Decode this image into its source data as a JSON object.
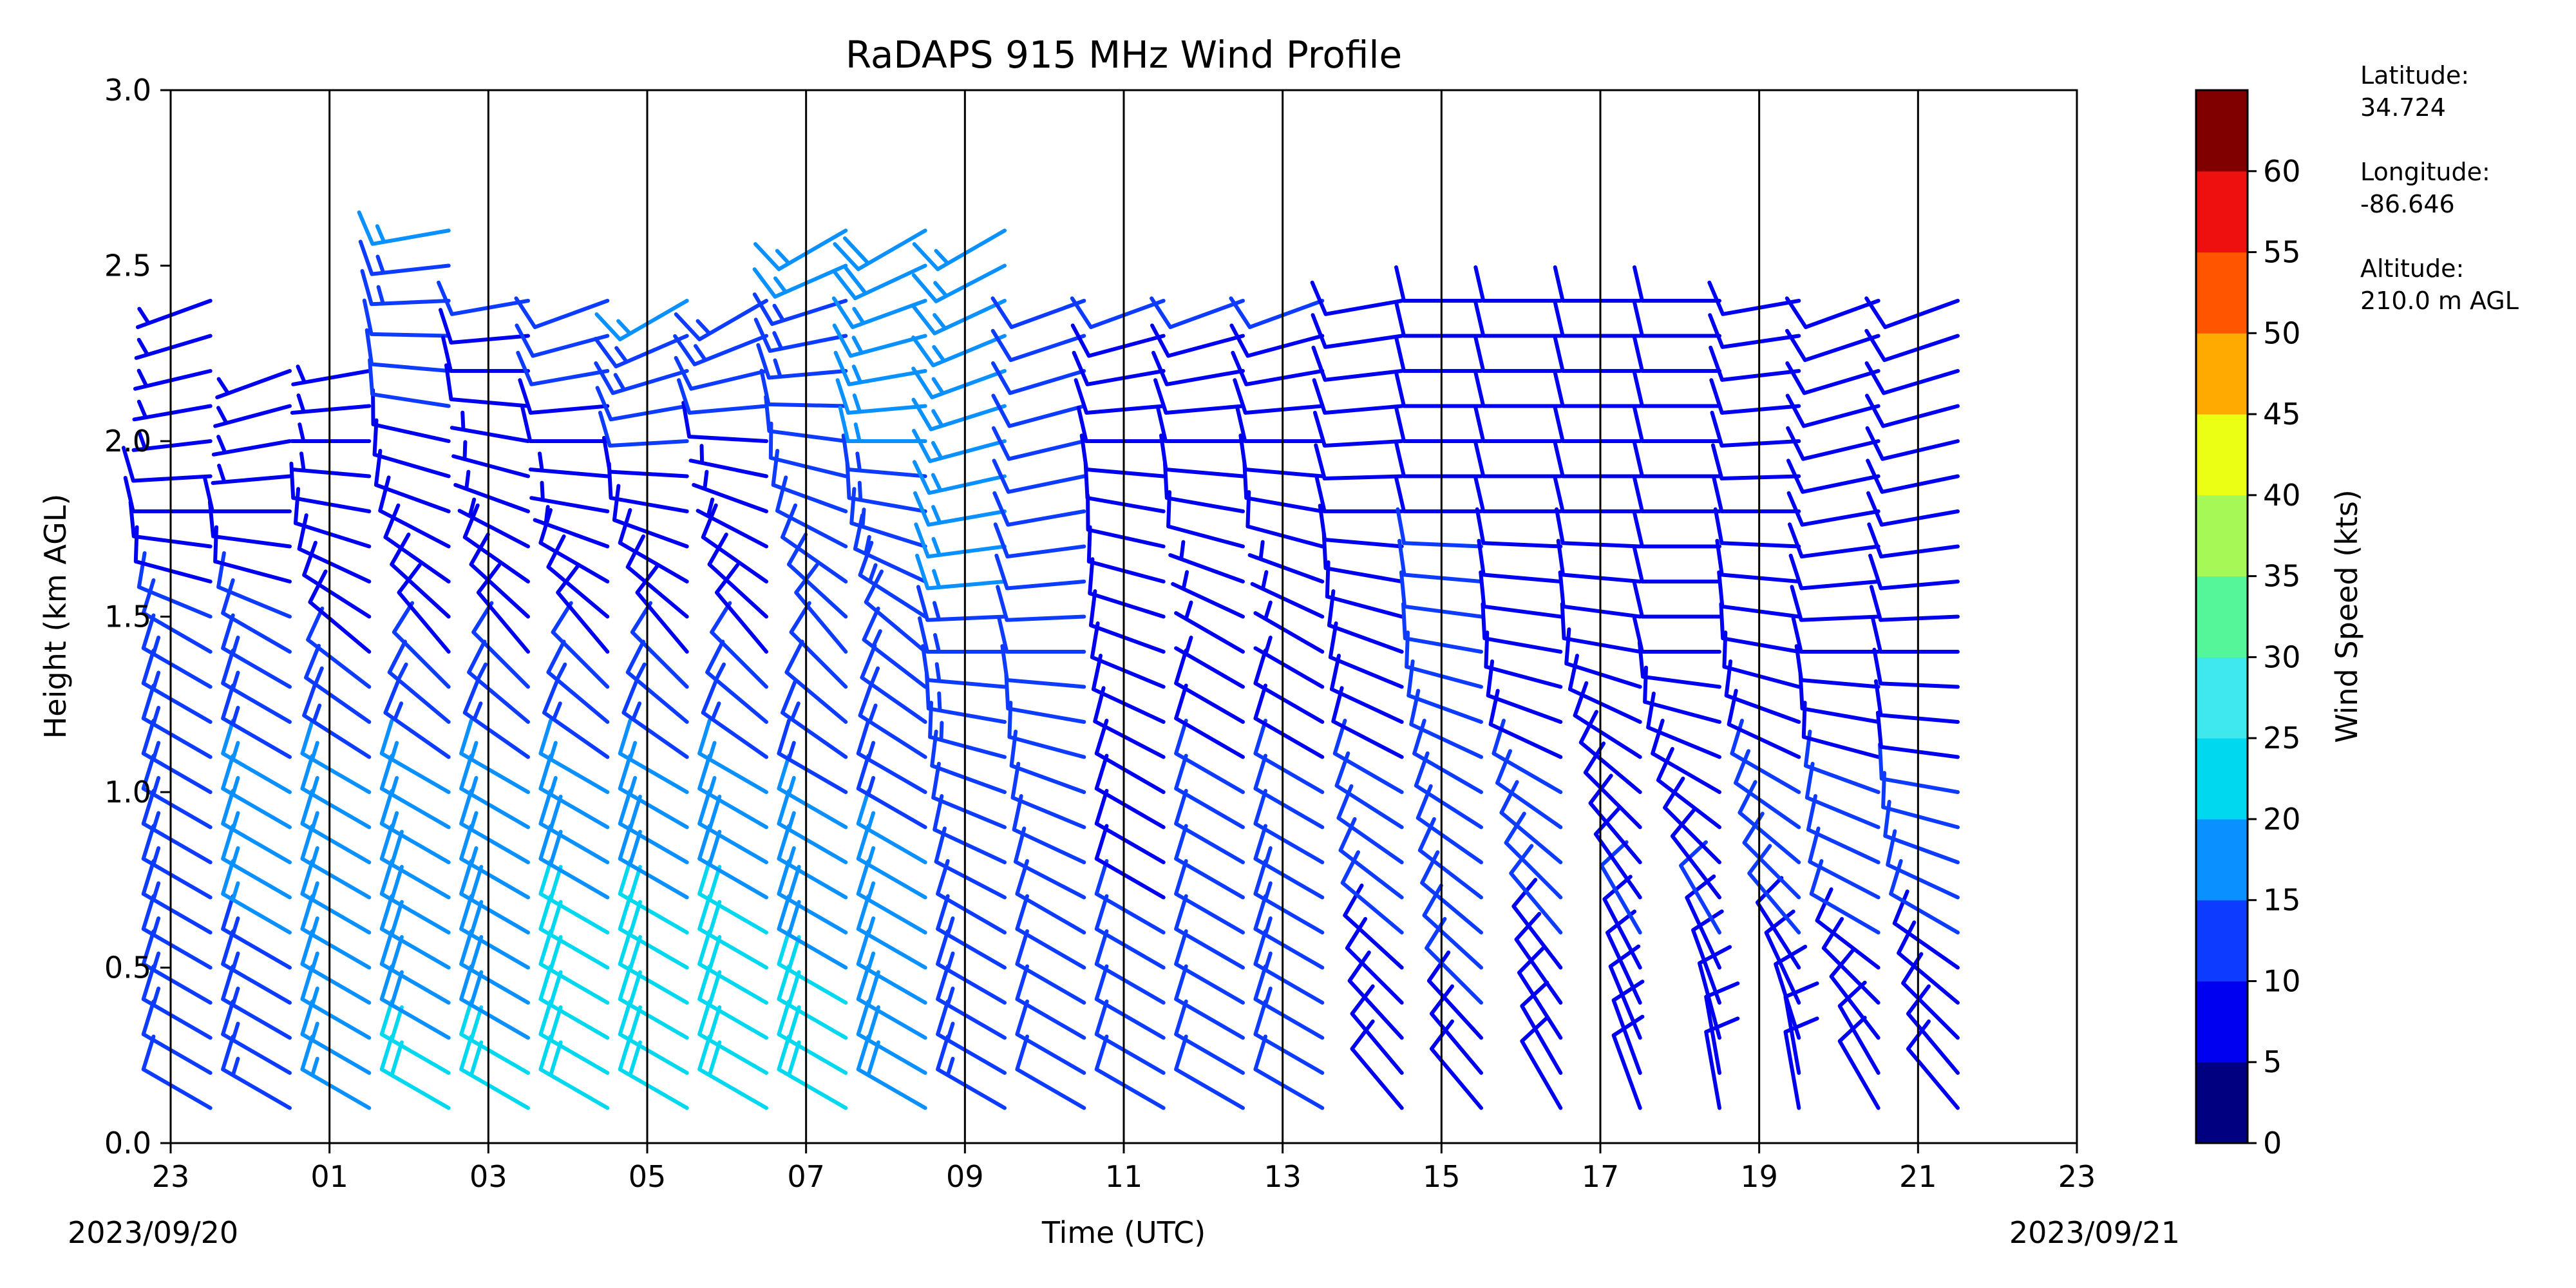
{
  "chart_data": {
    "type": "wind_barb_profile",
    "title": "RaDAPS 915 MHz Wind Profile",
    "xlabel": "Time (UTC)",
    "ylabel": "Height (km AGL)",
    "x_ticks": [
      "23",
      "01",
      "03",
      "05",
      "07",
      "09",
      "11",
      "13",
      "15",
      "17",
      "19",
      "21",
      "23"
    ],
    "x_start_date": "2023/09/20",
    "x_end_date": "2023/09/21",
    "x_range_hours": [
      0,
      24
    ],
    "y_ticks": [
      "0.0",
      "0.5",
      "1.0",
      "1.5",
      "2.0",
      "2.5",
      "3.0"
    ],
    "ylim": [
      0,
      3.0
    ],
    "vertical_separators_every_hours": 2,
    "colorbar": {
      "label": "Wind Speed (kts)",
      "ticks": [
        "0",
        "5",
        "10",
        "15",
        "20",
        "25",
        "30",
        "35",
        "40",
        "45",
        "50",
        "55",
        "60"
      ],
      "bins": [
        {
          "min": 0,
          "max": 5,
          "color": "#000080"
        },
        {
          "min": 5,
          "max": 10,
          "color": "#0000f0"
        },
        {
          "min": 10,
          "max": 15,
          "color": "#0d3bff"
        },
        {
          "min": 15,
          "max": 20,
          "color": "#0a90ff"
        },
        {
          "min": 20,
          "max": 25,
          "color": "#00d8f0"
        },
        {
          "min": 25,
          "max": 30,
          "color": "#3ee8ec"
        },
        {
          "min": 30,
          "max": 35,
          "color": "#55f59a"
        },
        {
          "min": 35,
          "max": 40,
          "color": "#a6f856"
        },
        {
          "min": 40,
          "max": 45,
          "color": "#eaff14"
        },
        {
          "min": 45,
          "max": 50,
          "color": "#ffaa00"
        },
        {
          "min": 50,
          "max": 55,
          "color": "#ff5500"
        },
        {
          "min": 55,
          "max": 60,
          "color": "#ee0f0f"
        },
        {
          "min": 60,
          "max": 65,
          "color": "#800000"
        }
      ]
    },
    "series": [
      {
        "time_hours": 0.5,
        "levels": [
          [
            0.2,
            12,
            300
          ],
          [
            0.6,
            14,
            300
          ],
          [
            1.0,
            14,
            300
          ],
          [
            1.4,
            12,
            300
          ],
          [
            1.8,
            8,
            270
          ],
          [
            2.4,
            6,
            250
          ]
        ]
      },
      {
        "time_hours": 1.5,
        "levels": [
          [
            0.2,
            14,
            300
          ],
          [
            0.6,
            15,
            300
          ],
          [
            1.0,
            15,
            300
          ],
          [
            1.4,
            12,
            300
          ],
          [
            1.8,
            8,
            270
          ],
          [
            2.2,
            6,
            250
          ]
        ]
      },
      {
        "time_hours": 2.5,
        "levels": [
          [
            0.2,
            16,
            300
          ],
          [
            0.6,
            16,
            300
          ],
          [
            1.0,
            15,
            300
          ],
          [
            1.4,
            10,
            310
          ],
          [
            1.8,
            8,
            280
          ],
          [
            2.2,
            6,
            260
          ]
        ]
      },
      {
        "time_hours": 3.5,
        "levels": [
          [
            0.2,
            20,
            300
          ],
          [
            0.6,
            18,
            300
          ],
          [
            1.0,
            16,
            300
          ],
          [
            1.4,
            10,
            320
          ],
          [
            1.8,
            8,
            290
          ],
          [
            2.6,
            15,
            260
          ]
        ]
      },
      {
        "time_hours": 4.5,
        "levels": [
          [
            0.2,
            20,
            300
          ],
          [
            0.6,
            18,
            300
          ],
          [
            1.0,
            15,
            300
          ],
          [
            1.4,
            10,
            320
          ],
          [
            1.8,
            6,
            290
          ],
          [
            2.4,
            10,
            260
          ]
        ]
      },
      {
        "time_hours": 5.5,
        "levels": [
          [
            0.2,
            22,
            300
          ],
          [
            0.6,
            20,
            300
          ],
          [
            1.0,
            16,
            300
          ],
          [
            1.4,
            10,
            320
          ],
          [
            1.8,
            6,
            280
          ],
          [
            2.4,
            12,
            250
          ]
        ]
      },
      {
        "time_hours": 6.5,
        "levels": [
          [
            0.2,
            22,
            300
          ],
          [
            0.6,
            20,
            300
          ],
          [
            1.0,
            16,
            300
          ],
          [
            1.4,
            10,
            320
          ],
          [
            1.8,
            8,
            280
          ],
          [
            2.4,
            15,
            240
          ]
        ]
      },
      {
        "time_hours": 7.5,
        "levels": [
          [
            0.2,
            20,
            300
          ],
          [
            0.6,
            20,
            300
          ],
          [
            1.0,
            15,
            300
          ],
          [
            1.4,
            10,
            320
          ],
          [
            1.8,
            6,
            290
          ],
          [
            2.4,
            14,
            240
          ]
        ]
      },
      {
        "time_hours": 8.5,
        "levels": [
          [
            0.2,
            22,
            300
          ],
          [
            0.6,
            18,
            300
          ],
          [
            1.0,
            14,
            300
          ],
          [
            1.4,
            10,
            320
          ],
          [
            1.8,
            10,
            290
          ],
          [
            2.6,
            16,
            240
          ]
        ]
      },
      {
        "time_hours": 9.5,
        "levels": [
          [
            0.2,
            18,
            300
          ],
          [
            0.6,
            16,
            300
          ],
          [
            1.0,
            14,
            300
          ],
          [
            1.4,
            12,
            310
          ],
          [
            1.8,
            14,
            280
          ],
          [
            2.6,
            18,
            240
          ]
        ]
      },
      {
        "time_hours": 10.5,
        "levels": [
          [
            0.2,
            14,
            300
          ],
          [
            0.6,
            12,
            300
          ],
          [
            1.0,
            12,
            290
          ],
          [
            1.4,
            14,
            270
          ],
          [
            1.8,
            16,
            260
          ],
          [
            2.6,
            16,
            240
          ]
        ]
      },
      {
        "time_hours": 11.5,
        "levels": [
          [
            0.2,
            12,
            300
          ],
          [
            0.6,
            10,
            300
          ],
          [
            1.0,
            10,
            290
          ],
          [
            1.4,
            12,
            270
          ],
          [
            1.8,
            12,
            260
          ],
          [
            2.4,
            10,
            250
          ]
        ]
      },
      {
        "time_hours": 12.5,
        "levels": [
          [
            0.2,
            10,
            300
          ],
          [
            0.6,
            10,
            300
          ],
          [
            1.0,
            8,
            300
          ],
          [
            1.4,
            8,
            290
          ],
          [
            1.8,
            8,
            280
          ],
          [
            2.4,
            10,
            250
          ]
        ]
      },
      {
        "time_hours": 13.5,
        "levels": [
          [
            0.2,
            10,
            300
          ],
          [
            0.6,
            12,
            300
          ],
          [
            1.0,
            10,
            300
          ],
          [
            1.4,
            6,
            300
          ],
          [
            1.8,
            8,
            280
          ],
          [
            2.4,
            10,
            250
          ]
        ]
      },
      {
        "time_hours": 14.5,
        "levels": [
          [
            0.2,
            12,
            300
          ],
          [
            0.6,
            14,
            300
          ],
          [
            1.0,
            10,
            300
          ],
          [
            1.4,
            6,
            300
          ],
          [
            1.8,
            8,
            280
          ],
          [
            2.4,
            10,
            250
          ]
        ]
      },
      {
        "time_hours": 15.5,
        "levels": [
          [
            0.2,
            8,
            320
          ],
          [
            0.6,
            10,
            310
          ],
          [
            1.0,
            10,
            300
          ],
          [
            1.4,
            8,
            290
          ],
          [
            1.8,
            8,
            270
          ],
          [
            2.4,
            8,
            260
          ]
        ]
      },
      {
        "time_hours": 16.5,
        "levels": [
          [
            0.2,
            8,
            320
          ],
          [
            0.6,
            12,
            310
          ],
          [
            1.0,
            12,
            300
          ],
          [
            1.4,
            10,
            280
          ],
          [
            1.8,
            10,
            270
          ],
          [
            2.4,
            8,
            270
          ]
        ]
      },
      {
        "time_hours": 17.5,
        "levels": [
          [
            0.2,
            8,
            330
          ],
          [
            0.6,
            10,
            320
          ],
          [
            1.0,
            10,
            300
          ],
          [
            1.4,
            8,
            280
          ],
          [
            1.8,
            8,
            270
          ],
          [
            2.4,
            8,
            270
          ]
        ]
      },
      {
        "time_hours": 18.5,
        "levels": [
          [
            0.2,
            8,
            340
          ],
          [
            0.6,
            10,
            330
          ],
          [
            1.0,
            8,
            310
          ],
          [
            1.4,
            8,
            280
          ],
          [
            1.8,
            8,
            270
          ],
          [
            2.4,
            8,
            270
          ]
        ]
      },
      {
        "time_hours": 19.5,
        "levels": [
          [
            0.2,
            8,
            350
          ],
          [
            0.6,
            10,
            330
          ],
          [
            1.0,
            8,
            300
          ],
          [
            1.4,
            8,
            270
          ],
          [
            1.8,
            8,
            270
          ],
          [
            2.4,
            8,
            270
          ]
        ]
      },
      {
        "time_hours": 20.5,
        "levels": [
          [
            0.2,
            8,
            350
          ],
          [
            0.6,
            10,
            320
          ],
          [
            1.0,
            10,
            300
          ],
          [
            1.4,
            8,
            280
          ],
          [
            1.8,
            8,
            270
          ],
          [
            2.4,
            8,
            260
          ]
        ]
      },
      {
        "time_hours": 21.5,
        "levels": [
          [
            0.2,
            8,
            330
          ],
          [
            0.6,
            10,
            300
          ],
          [
            1.0,
            10,
            290
          ],
          [
            1.4,
            8,
            270
          ],
          [
            1.8,
            8,
            260
          ],
          [
            2.4,
            8,
            250
          ]
        ]
      },
      {
        "time_hours": 22.5,
        "levels": [
          [
            0.2,
            8,
            320
          ],
          [
            0.6,
            10,
            300
          ],
          [
            1.0,
            10,
            280
          ],
          [
            1.4,
            8,
            270
          ],
          [
            1.8,
            8,
            260
          ],
          [
            2.4,
            8,
            250
          ]
        ]
      }
    ]
  },
  "site_info": {
    "latitude_label": "Latitude:",
    "latitude_value": "34.724",
    "longitude_label": "Longitude:",
    "longitude_value": "-86.646",
    "altitude_label": "Altitude:",
    "altitude_value": "210.0 m AGL"
  }
}
